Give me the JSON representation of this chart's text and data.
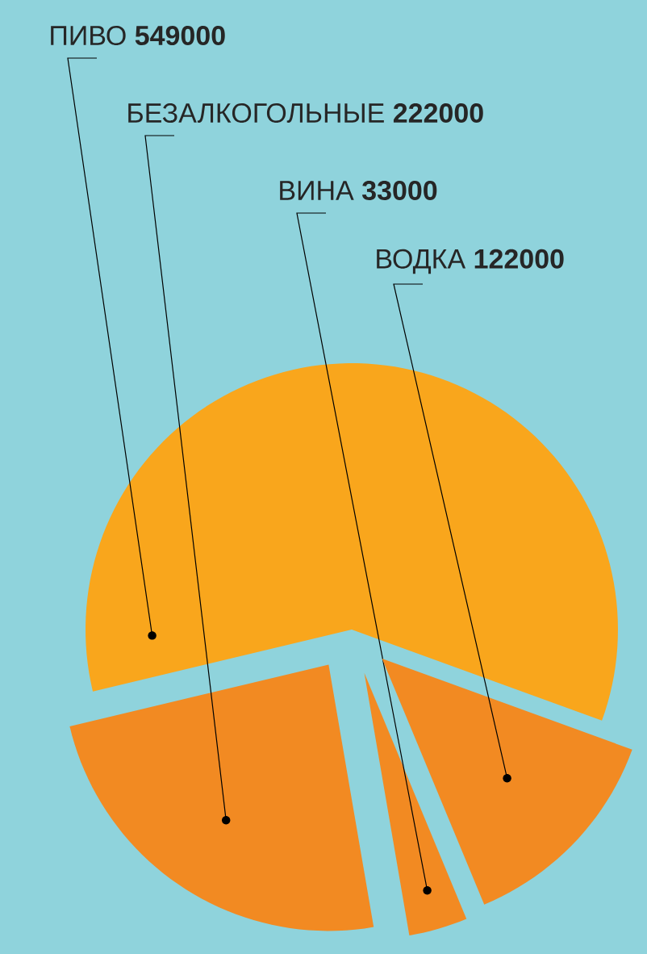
{
  "chart_data": {
    "type": "pie",
    "categories": [
      "ПИВО",
      "БЕЗАЛКОГОЛЬНЫЕ",
      "ВИНА",
      "ВОДКА"
    ],
    "values": [
      549000,
      222000,
      33000,
      122000
    ],
    "colors": [
      "#f9a61c",
      "#f28a22",
      "#f28a22",
      "#f28a22"
    ],
    "data_labels": true
  }
}
